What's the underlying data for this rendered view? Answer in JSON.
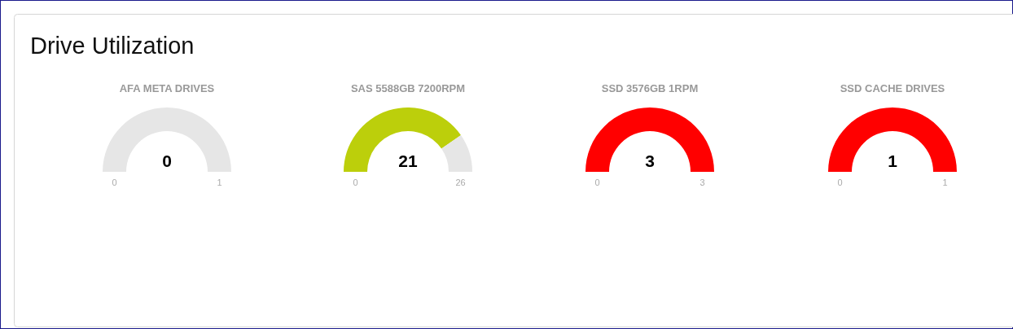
{
  "chart_data": [
    {
      "type": "other",
      "title": "Drive Utilization"
    },
    {
      "type": "pie",
      "title": "AFA META DRIVES",
      "categories": [
        null,
        null
      ],
      "values": [
        0,
        1
      ],
      "colors": [
        "#bccf0b",
        "#e6e6e6"
      ],
      "value_labels": [
        "0",
        null
      ],
      "annotations": [
        "0",
        "1"
      ]
    },
    {
      "type": "donut",
      "title": "SAS 5588GB 7200RPM",
      "categories": [
        null,
        null
      ],
      "values": [
        21,
        5
      ],
      "colors": [
        "#bccf0b",
        "#e6e6e6"
      ],
      "value_labels": [
        "21",
        null
      ],
      "annotations": [
        "0",
        "26"
      ]
    },
    {
      "type": "pie",
      "title": "SSD 3576GB 1RPM",
      "categories": [
        null,
        null
      ],
      "values": [
        3,
        0
      ],
      "colors": [
        "#ff0000",
        "#e6e6e6"
      ],
      "value_labels": [
        "3",
        null
      ],
      "annotations": [
        "0",
        "3"
      ]
    },
    {
      "type": "pie",
      "title": "SSD CACHE DRIVES",
      "categories": [
        null,
        null
      ],
      "values": [
        1,
        0
      ],
      "colors": [
        "#ff0000",
        "#e6e6e6"
      ],
      "value_labels": [
        "1",
        null
      ],
      "annotations": [
        "0",
        "1"
      ]
    }
  ]
}
